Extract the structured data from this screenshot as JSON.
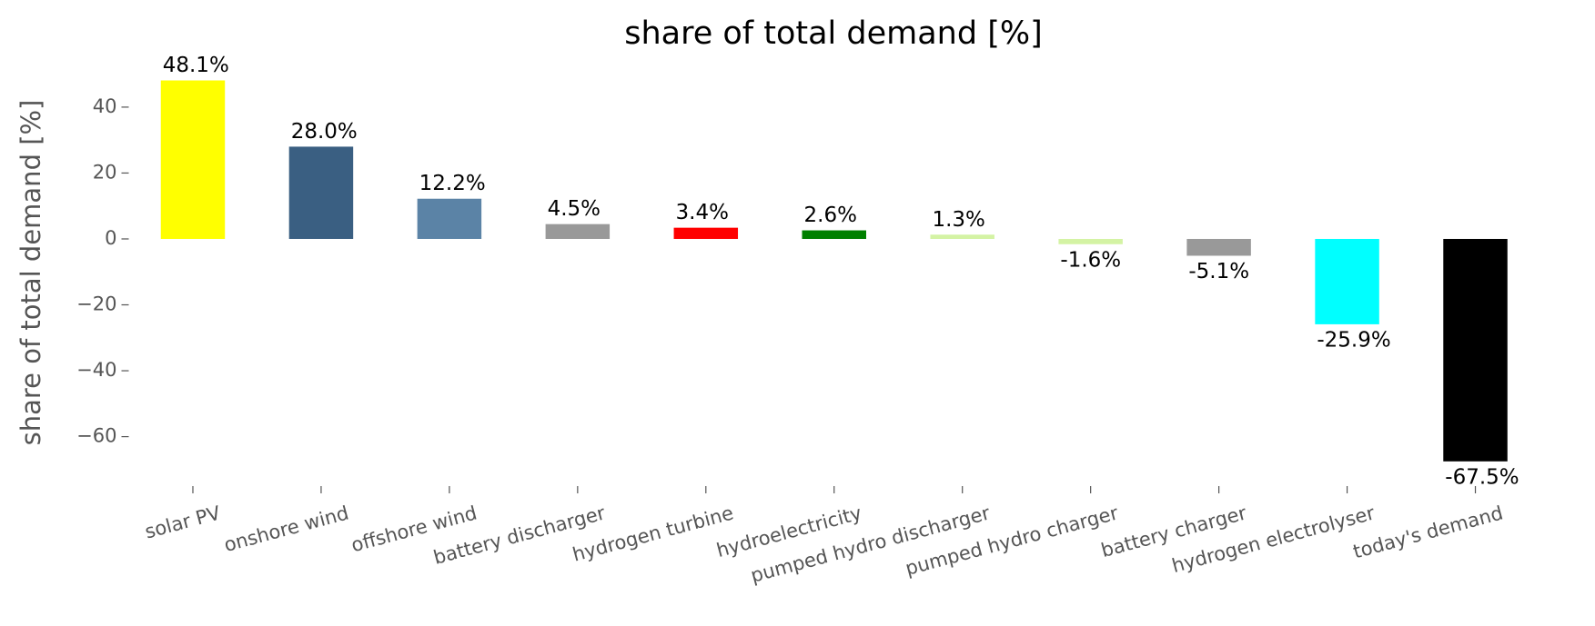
{
  "chart_data": {
    "type": "bar",
    "title": "share of total demand [%]",
    "ylabel": "share of total demand [%]",
    "categories": [
      "solar PV",
      "onshore wind",
      "offshore wind",
      "battery discharger",
      "hydrogen turbine",
      "hydroelectricity",
      "pumped hydro discharger",
      "pumped hydro charger",
      "battery charger",
      "hydrogen electrolyser",
      "today's demand"
    ],
    "values": [
      48.1,
      28.0,
      12.2,
      4.5,
      3.4,
      2.6,
      1.3,
      -1.6,
      -5.1,
      -25.9,
      -67.5
    ],
    "value_labels": [
      "48.1%",
      "28.0%",
      "12.2%",
      "4.5%",
      "3.4%",
      "2.6%",
      "1.3%",
      "-1.6%",
      "-5.1%",
      "-25.9%",
      "-67.5%"
    ],
    "colors": [
      "#ffff00",
      "#3a5f82",
      "#5b83a6",
      "#999999",
      "#ff0000",
      "#008000",
      "#d4f3a4",
      "#d4f3a4",
      "#999999",
      "#00ffff",
      "#000000"
    ],
    "ylim": [
      -75,
      51
    ],
    "yticks": [
      {
        "value": -60,
        "label": "−60"
      },
      {
        "value": -40,
        "label": "−40"
      },
      {
        "value": -20,
        "label": "−20"
      },
      0,
      20,
      40
    ],
    "grid": false
  }
}
